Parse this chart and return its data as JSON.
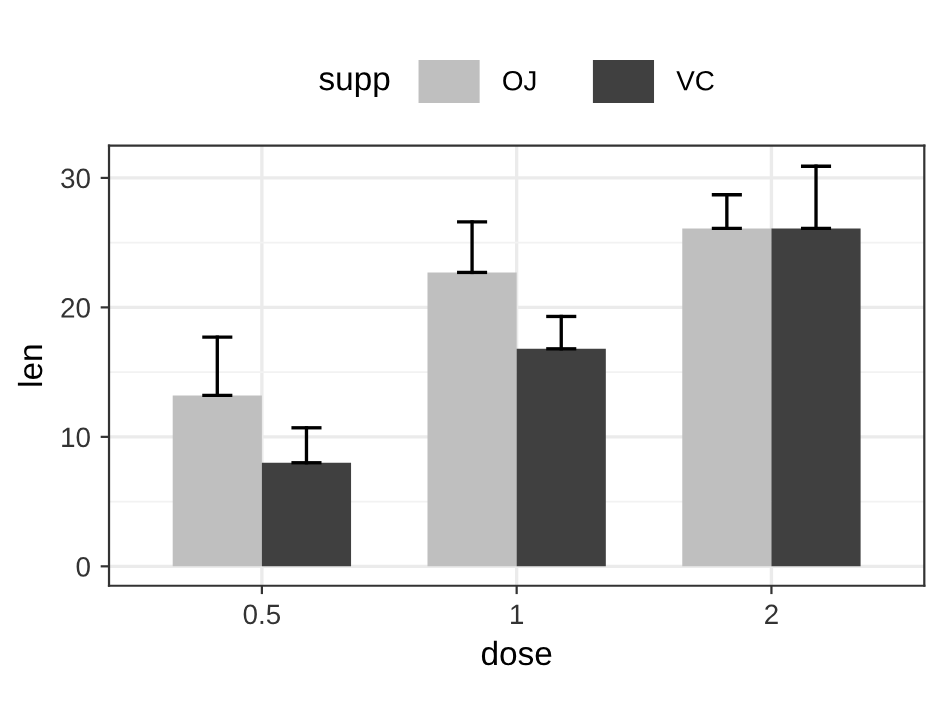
{
  "chart_data": {
    "type": "bar",
    "xlabel": "dose",
    "ylabel": "len",
    "legend_title": "supp",
    "categories": [
      "0.5",
      "1",
      "2"
    ],
    "series": [
      {
        "name": "OJ",
        "color": "#bfbfbf",
        "values": [
          13.2,
          22.7,
          26.1
        ],
        "errors": [
          [
            13.2,
            17.7
          ],
          [
            22.7,
            26.6
          ],
          [
            26.1,
            28.7
          ]
        ]
      },
      {
        "name": "VC",
        "color": "#404040",
        "values": [
          8.0,
          16.8,
          26.1
        ],
        "errors": [
          [
            8.0,
            10.7
          ],
          [
            16.8,
            19.3
          ],
          [
            26.1,
            30.9
          ]
        ]
      }
    ],
    "ylim": [
      -1.5,
      32.5
    ],
    "yticks": [
      0,
      {
        "value": 5,
        "label": null
      },
      10,
      {
        "value": 15,
        "label": null
      },
      20,
      {
        "value": 25,
        "label": null
      },
      30
    ],
    "grid": true,
    "legend": "top"
  }
}
